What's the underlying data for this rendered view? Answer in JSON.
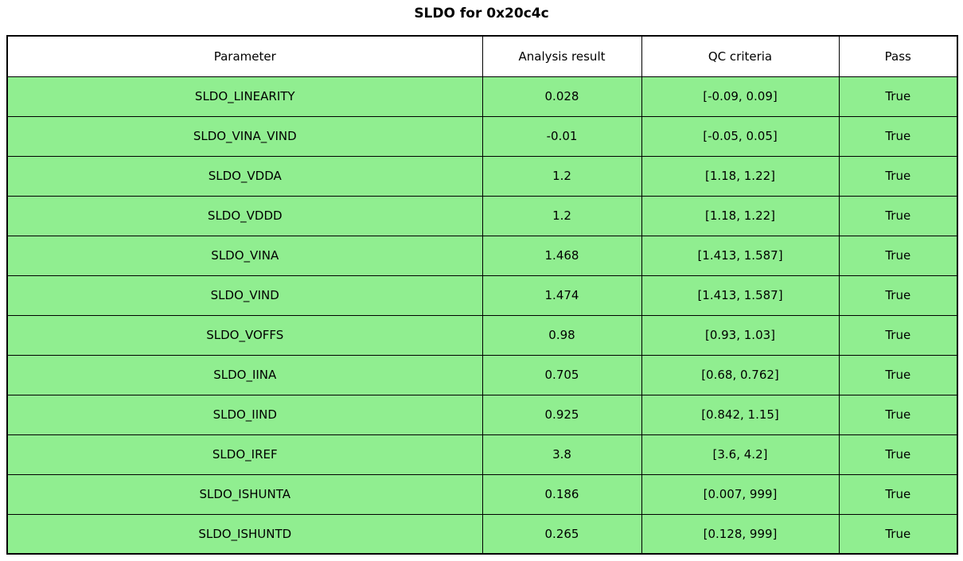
{
  "chart_data": {
    "type": "table",
    "title": "SLDO for 0x20c4c",
    "columns": [
      "Parameter",
      "Analysis result",
      "QC criteria",
      "Pass"
    ],
    "rows": [
      [
        "SLDO_LINEARITY",
        "0.028",
        "[-0.09, 0.09]",
        "True"
      ],
      [
        "SLDO_VINA_VIND",
        "-0.01",
        "[-0.05, 0.05]",
        "True"
      ],
      [
        "SLDO_VDDA",
        "1.2",
        "[1.18, 1.22]",
        "True"
      ],
      [
        "SLDO_VDDD",
        "1.2",
        "[1.18, 1.22]",
        "True"
      ],
      [
        "SLDO_VINA",
        "1.468",
        "[1.413, 1.587]",
        "True"
      ],
      [
        "SLDO_VIND",
        "1.474",
        "[1.413, 1.587]",
        "True"
      ],
      [
        "SLDO_VOFFS",
        "0.98",
        "[0.93, 1.03]",
        "True"
      ],
      [
        "SLDO_IINA",
        "0.705",
        "[0.68, 0.762]",
        "True"
      ],
      [
        "SLDO_IIND",
        "0.925",
        "[0.842, 1.15]",
        "True"
      ],
      [
        "SLDO_IREF",
        "3.8",
        "[3.6, 4.2]",
        "True"
      ],
      [
        "SLDO_ISHUNTA",
        "0.186",
        "[0.007, 999]",
        "True"
      ],
      [
        "SLDO_ISHUNTD",
        "0.265",
        "[0.128, 999]",
        "True"
      ]
    ],
    "layout": {
      "legend": "none",
      "grid": "cell-borders",
      "header_position": "top"
    },
    "styles": {
      "row_bg": "#90EE90",
      "header_bg": "#ffffff",
      "border": "#000000",
      "text": "#000000",
      "pass_value_all": "True"
    }
  }
}
